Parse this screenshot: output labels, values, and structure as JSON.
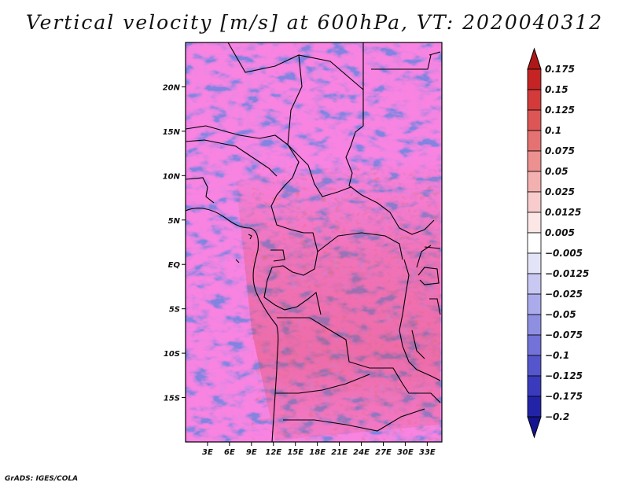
{
  "title": "Vertical velocity [m/s] at 600hPa, VT: 2020040312",
  "footer": "GrADS: IGES/COLA",
  "map": {
    "variable": "Vertical velocity",
    "units": "m/s",
    "level": "600hPa",
    "valid_time": "2020040312",
    "lon_range": [
      0,
      35
    ],
    "lat_range": [
      -20,
      25
    ],
    "lat_ticks": [
      {
        "label": "20N",
        "value": 20
      },
      {
        "label": "15N",
        "value": 15
      },
      {
        "label": "10N",
        "value": 10
      },
      {
        "label": "5N",
        "value": 5
      },
      {
        "label": "EQ",
        "value": 0
      },
      {
        "label": "5S",
        "value": -5
      },
      {
        "label": "10S",
        "value": -10
      },
      {
        "label": "15S",
        "value": -15
      }
    ],
    "lon_ticks": [
      {
        "label": "3E",
        "value": 3
      },
      {
        "label": "6E",
        "value": 6
      },
      {
        "label": "9E",
        "value": 9
      },
      {
        "label": "12E",
        "value": 12
      },
      {
        "label": "15E",
        "value": 15
      },
      {
        "label": "18E",
        "value": 18
      },
      {
        "label": "21E",
        "value": 21
      },
      {
        "label": "24E",
        "value": 24
      },
      {
        "label": "27E",
        "value": 27
      },
      {
        "label": "30E",
        "value": 30
      },
      {
        "label": "33E",
        "value": 33
      }
    ]
  },
  "colorbar": {
    "levels": [
      "0.175",
      "0.15",
      "0.125",
      "0.1",
      "0.075",
      "0.05",
      "0.025",
      "0.0125",
      "0.005",
      "−0.005",
      "−0.0125",
      "−0.025",
      "−0.05",
      "−0.075",
      "−0.1",
      "−0.125",
      "−0.175",
      "−0.2"
    ],
    "colors": [
      "#b01818",
      "#c42424",
      "#d33a3a",
      "#dd5656",
      "#e57272",
      "#ec9090",
      "#f3b0b0",
      "#f8cccc",
      "#fce6e6",
      "#ffffff",
      "#e4e4f8",
      "#c8c8f2",
      "#ababeb",
      "#8f8fe2",
      "#7272d8",
      "#5555cc",
      "#3a3abd",
      "#2323a8",
      "#141490"
    ]
  }
}
